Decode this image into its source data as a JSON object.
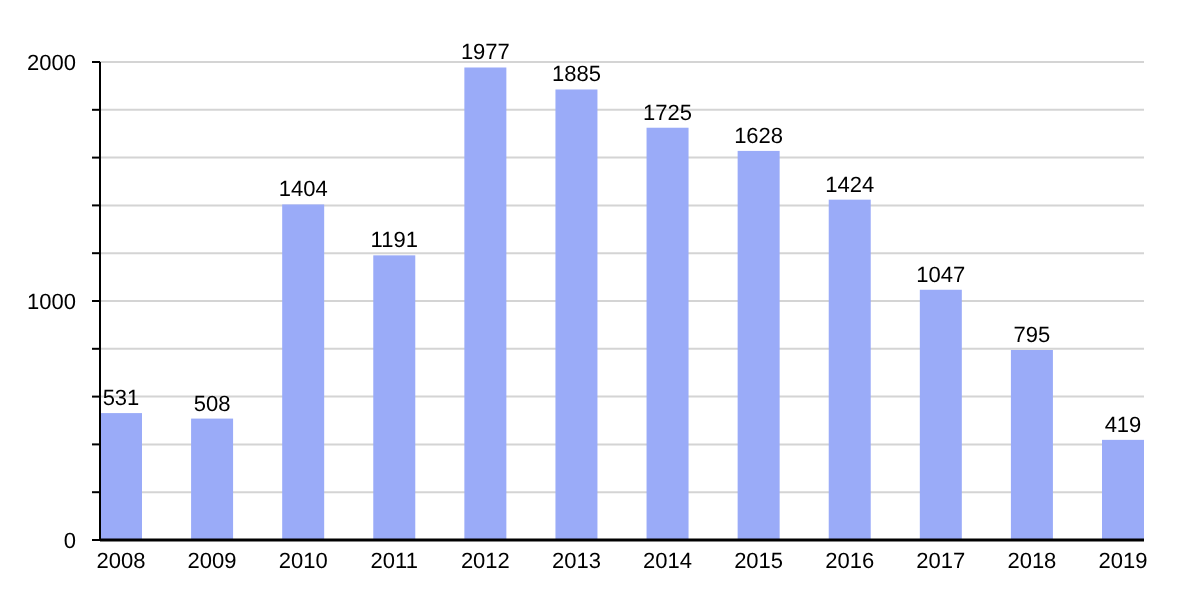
{
  "chart_data": {
    "type": "bar",
    "categories": [
      "2008",
      "2009",
      "2010",
      "2011",
      "2012",
      "2013",
      "2014",
      "2015",
      "2016",
      "2017",
      "2018",
      "2019"
    ],
    "values": [
      531,
      508,
      1404,
      1191,
      1977,
      1885,
      1725,
      1628,
      1424,
      1047,
      795,
      419
    ],
    "color": "#9aabf8",
    "ylim": [
      0,
      2000
    ],
    "yticks": [
      0,
      {
        "value": 200,
        "label": null
      },
      {
        "value": 400,
        "label": null
      },
      {
        "value": 600,
        "label": null
      },
      {
        "value": 800,
        "label": null
      },
      1000,
      {
        "value": 1200,
        "label": null
      },
      {
        "value": 1400,
        "label": null
      },
      {
        "value": 1600,
        "label": null
      },
      {
        "value": 1800,
        "label": null
      },
      2000
    ],
    "grid": true,
    "data_labels": true
  }
}
